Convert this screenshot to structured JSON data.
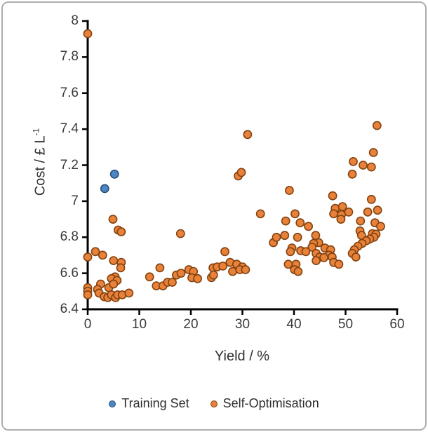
{
  "figure": {
    "background_color": "#ffffff",
    "frame_border_color": "#aeaeae",
    "axis_line_color": "#000000",
    "tick_label_color": "#3a3a3a"
  },
  "chart_data": {
    "type": "scatter",
    "title": "",
    "xlabel": "Yield / %",
    "ylabel": "Cost / £ L⁻¹",
    "ylabel_base": "Cost / £ L",
    "ylabel_superscript": "-1",
    "xlim": [
      0,
      60
    ],
    "ylim": [
      6.4,
      8
    ],
    "grid": false,
    "legend_position": "bottom",
    "x_ticks": [
      {
        "value": 0,
        "label": "0"
      },
      {
        "value": 10,
        "label": "10"
      },
      {
        "value": 20,
        "label": "20"
      },
      {
        "value": 30,
        "label": "30"
      },
      {
        "value": 40,
        "label": "40"
      },
      {
        "value": 50,
        "label": "50"
      },
      {
        "value": 60,
        "label": "60"
      }
    ],
    "y_ticks": [
      {
        "value": 6.4,
        "label": "6.4"
      },
      {
        "value": 6.6,
        "label": "6.6"
      },
      {
        "value": 6.8,
        "label": "6.8"
      },
      {
        "value": 7,
        "label": "7"
      },
      {
        "value": 7.2,
        "label": "7.2"
      },
      {
        "value": 7.4,
        "label": "7.4"
      },
      {
        "value": 7.6,
        "label": "7.6"
      },
      {
        "value": 7.8,
        "label": "7.8"
      },
      {
        "value": 8,
        "label": "8"
      }
    ],
    "series": [
      {
        "name": "Training Set",
        "fill_color": "#4e86c5",
        "border_color": "#274f78",
        "points": [
          [
            3.3,
            7.07
          ],
          [
            5.2,
            7.15
          ]
        ]
      },
      {
        "name": "Self-Optimisation",
        "fill_color": "#e8813a",
        "border_color": "#82420f",
        "points": [
          [
            0,
            7.93
          ],
          [
            0,
            6.69
          ],
          [
            0,
            6.52
          ],
          [
            0,
            6.5
          ],
          [
            0,
            6.48
          ],
          [
            1.5,
            6.72
          ],
          [
            2.9,
            6.7
          ],
          [
            4.9,
            6.9
          ],
          [
            5.9,
            6.84
          ],
          [
            6.5,
            6.83
          ],
          [
            5.0,
            6.67
          ],
          [
            6.5,
            6.66
          ],
          [
            6.4,
            6.63
          ],
          [
            2.5,
            6.54
          ],
          [
            1.9,
            6.51
          ],
          [
            4.1,
            6.52
          ],
          [
            5.3,
            6.58
          ],
          [
            4.6,
            6.57
          ],
          [
            5.7,
            6.56
          ],
          [
            5.0,
            6.54
          ],
          [
            2.2,
            6.49
          ],
          [
            3.2,
            6.47
          ],
          [
            3.9,
            6.465
          ],
          [
            4.6,
            6.48
          ],
          [
            5.4,
            6.465
          ],
          [
            5.8,
            6.48
          ],
          [
            6.7,
            6.48
          ],
          [
            8.0,
            6.49
          ],
          [
            12.0,
            6.58
          ],
          [
            13.3,
            6.53
          ],
          [
            14.0,
            6.63
          ],
          [
            14.6,
            6.53
          ],
          [
            15.5,
            6.55
          ],
          [
            16.4,
            6.55
          ],
          [
            17.2,
            6.59
          ],
          [
            18.0,
            6.82
          ],
          [
            18.1,
            6.6
          ],
          [
            19.6,
            6.62
          ],
          [
            20.5,
            6.61
          ],
          [
            20.2,
            6.575
          ],
          [
            21.3,
            6.57
          ],
          [
            24.3,
            6.63
          ],
          [
            25.1,
            6.635
          ],
          [
            26.2,
            6.64
          ],
          [
            24.0,
            6.576
          ],
          [
            24.4,
            6.59
          ],
          [
            26.6,
            6.72
          ],
          [
            27.6,
            6.66
          ],
          [
            28.9,
            6.65
          ],
          [
            30.0,
            6.635
          ],
          [
            28.1,
            6.61
          ],
          [
            29.5,
            6.62
          ],
          [
            30.6,
            6.62
          ],
          [
            29.2,
            7.14
          ],
          [
            29.8,
            7.16
          ],
          [
            31.0,
            7.37
          ],
          [
            33.5,
            6.93
          ],
          [
            36.0,
            6.77
          ],
          [
            36.6,
            6.8
          ],
          [
            38.2,
            6.81
          ],
          [
            38.4,
            6.89
          ],
          [
            39.1,
            7.06
          ],
          [
            40.2,
            6.93
          ],
          [
            40.7,
            6.8
          ],
          [
            41.2,
            6.88
          ],
          [
            42.8,
            6.86
          ],
          [
            39.6,
            6.74
          ],
          [
            39.3,
            6.72
          ],
          [
            41.3,
            6.725
          ],
          [
            38.9,
            6.65
          ],
          [
            40.4,
            6.65
          ],
          [
            40.1,
            6.62
          ],
          [
            40.8,
            6.61
          ],
          [
            44.2,
            6.81
          ],
          [
            44.8,
            6.77
          ],
          [
            43.8,
            6.765
          ],
          [
            43.5,
            6.745
          ],
          [
            44.3,
            6.71
          ],
          [
            42.3,
            6.72
          ],
          [
            45.0,
            6.69
          ],
          [
            44.3,
            6.67
          ],
          [
            46.0,
            6.74
          ],
          [
            47.1,
            6.73
          ],
          [
            46.8,
            6.7
          ],
          [
            45.8,
            6.687
          ],
          [
            47.4,
            6.69
          ],
          [
            47.7,
            6.66
          ],
          [
            48.7,
            6.65
          ],
          [
            48.0,
            6.96
          ],
          [
            49.4,
            6.97
          ],
          [
            50.6,
            6.94
          ],
          [
            47.7,
            6.93
          ],
          [
            49.2,
            6.925
          ],
          [
            49.1,
            6.9
          ],
          [
            47.5,
            7.03
          ],
          [
            51.5,
            7.22
          ],
          [
            53.4,
            7.2
          ],
          [
            55.0,
            7.19
          ],
          [
            51.3,
            7.15
          ],
          [
            55.4,
            7.27
          ],
          [
            56.1,
            7.42
          ],
          [
            55.0,
            7.01
          ],
          [
            54.3,
            6.94
          ],
          [
            56.2,
            6.95
          ],
          [
            52.9,
            6.89
          ],
          [
            55.7,
            6.88
          ],
          [
            56.8,
            6.86
          ],
          [
            52.8,
            6.835
          ],
          [
            53.1,
            6.81
          ],
          [
            55.2,
            6.82
          ],
          [
            55.9,
            6.817
          ],
          [
            55.5,
            6.8
          ],
          [
            54.7,
            6.79
          ],
          [
            54.0,
            6.78
          ],
          [
            53.2,
            6.765
          ],
          [
            52.4,
            6.75
          ],
          [
            51.7,
            6.73
          ],
          [
            51.3,
            6.71
          ],
          [
            52.0,
            6.69
          ]
        ]
      }
    ]
  }
}
